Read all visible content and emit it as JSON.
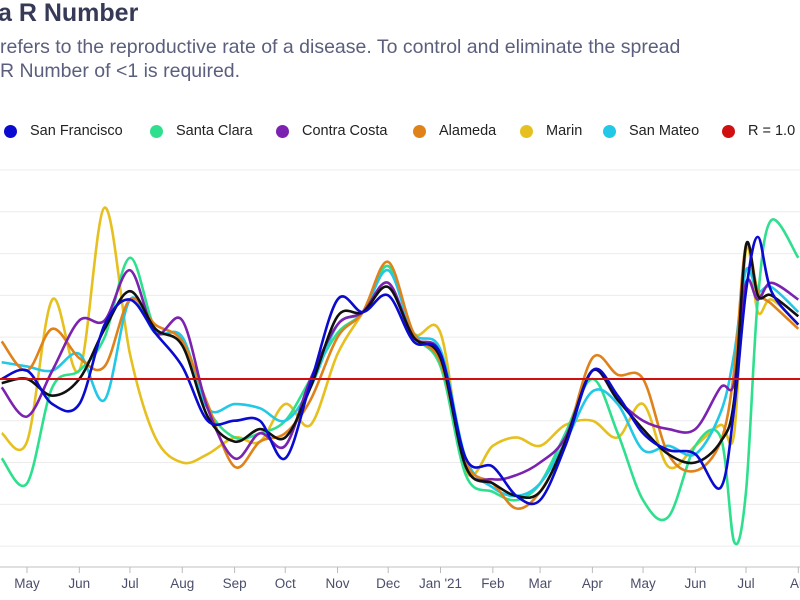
{
  "header": {
    "title": "a R Number",
    "subtitle_line1": "refers to the reproductive rate of a disease. To control and eliminate the spread",
    "subtitle_line2": "R Number of <1 is required."
  },
  "chart_data": {
    "type": "line",
    "title": "a R Number",
    "xlabel": "",
    "ylabel": "",
    "xlim": [
      "2020-04-15",
      "2021-08-02"
    ],
    "ylim": [
      0.55,
      1.5
    ],
    "grid": true,
    "legend_position": "top",
    "x_tick_labels": [
      "May",
      "Jun",
      "Jul",
      "Aug",
      "Sep",
      "Oct",
      "Nov",
      "Dec",
      "Jan '21",
      "Feb",
      "Mar",
      "Apr",
      "May",
      "Jun",
      "Jul",
      "Au"
    ],
    "x_tick_dates": [
      "2020-05-01",
      "2020-06-01",
      "2020-07-01",
      "2020-08-01",
      "2020-09-01",
      "2020-10-01",
      "2020-11-01",
      "2020-12-01",
      "2021-01-01",
      "2021-02-01",
      "2021-03-01",
      "2021-04-01",
      "2021-05-01",
      "2021-06-01",
      "2021-07-01",
      "2021-08-01"
    ],
    "x": [
      "2020-04-16",
      "2020-05-01",
      "2020-05-16",
      "2020-06-01",
      "2020-06-16",
      "2020-07-01",
      "2020-07-16",
      "2020-08-01",
      "2020-08-16",
      "2020-09-01",
      "2020-09-16",
      "2020-10-01",
      "2020-10-16",
      "2020-11-01",
      "2020-11-16",
      "2020-12-01",
      "2020-12-16",
      "2021-01-01",
      "2021-01-16",
      "2021-02-01",
      "2021-02-15",
      "2021-03-01",
      "2021-03-16",
      "2021-04-01",
      "2021-04-16",
      "2021-05-01",
      "2021-05-16",
      "2021-06-01",
      "2021-06-16",
      "2021-06-24",
      "2021-07-01",
      "2021-07-08",
      "2021-07-16",
      "2021-08-01"
    ],
    "series": [
      {
        "name": "Marin",
        "color": "#e6c01e",
        "values": [
          0.87,
          0.85,
          1.19,
          1.02,
          1.41,
          1.06,
          0.86,
          0.8,
          0.82,
          0.86,
          0.85,
          0.94,
          0.89,
          1.06,
          1.16,
          1.27,
          1.11,
          1.11,
          0.78,
          0.84,
          0.86,
          0.84,
          0.89,
          0.9,
          0.86,
          0.94,
          0.79,
          0.84,
          0.89,
          0.87,
          1.31,
          1.16,
          1.19,
          1.13
        ]
      },
      {
        "name": "Santa Clara",
        "color": "#2ee08e",
        "values": [
          0.81,
          0.75,
          0.98,
          1.02,
          1.1,
          1.29,
          1.12,
          1.1,
          0.93,
          0.86,
          0.87,
          0.9,
          1.0,
          1.11,
          1.16,
          1.27,
          1.11,
          1.03,
          0.77,
          0.73,
          0.71,
          0.75,
          0.87,
          1.0,
          0.87,
          0.71,
          0.67,
          0.84,
          0.86,
          0.61,
          0.73,
          1.19,
          1.38,
          1.29
        ]
      },
      {
        "name": "San Mateo",
        "color": "#22c8e6",
        "values": [
          1.04,
          1.03,
          1.02,
          1.06,
          0.95,
          1.19,
          1.11,
          1.1,
          0.93,
          0.94,
          0.93,
          0.9,
          0.98,
          1.13,
          1.16,
          1.26,
          1.11,
          1.07,
          0.81,
          0.74,
          0.72,
          0.75,
          0.85,
          0.97,
          0.94,
          0.83,
          0.84,
          0.82,
          0.92,
          1.06,
          1.26,
          1.21,
          1.22,
          1.16
        ]
      },
      {
        "name": "Alameda",
        "color": "#e0821a",
        "values": [
          1.09,
          1.02,
          1.12,
          1.05,
          1.03,
          1.19,
          1.13,
          1.09,
          0.94,
          0.79,
          0.85,
          0.87,
          0.95,
          1.1,
          1.16,
          1.28,
          1.11,
          1.04,
          0.8,
          0.75,
          0.69,
          0.73,
          0.85,
          1.05,
          1.01,
          1.0,
          0.82,
          0.78,
          0.85,
          1.02,
          1.32,
          1.21,
          1.18,
          1.12
        ]
      },
      {
        "name": "Contra Costa",
        "color": "#7b22b0",
        "values": [
          0.98,
          0.91,
          1.02,
          1.14,
          1.14,
          1.26,
          1.11,
          1.14,
          0.93,
          0.81,
          0.87,
          0.84,
          1.0,
          1.13,
          1.16,
          1.23,
          1.1,
          1.06,
          0.79,
          0.76,
          0.77,
          0.8,
          0.86,
          1.02,
          0.95,
          0.9,
          0.88,
          0.88,
          0.98,
          0.99,
          1.23,
          1.19,
          1.23,
          1.19
        ]
      },
      {
        "color": "#111111",
        "values": [
          0.99,
          1.0,
          0.96,
          1.0,
          1.12,
          1.21,
          1.12,
          1.08,
          0.91,
          0.85,
          0.88,
          0.86,
          0.98,
          1.15,
          1.16,
          1.22,
          1.1,
          1.05,
          0.79,
          0.75,
          0.72,
          0.73,
          0.85,
          1.02,
          0.95,
          0.88,
          0.82,
          0.8,
          0.85,
          0.95,
          1.32,
          1.2,
          1.2,
          1.15
        ]
      },
      {
        "name": "San Francisco",
        "color": "#0a0ad0",
        "values": [
          1.0,
          1.02,
          0.94,
          0.94,
          1.13,
          1.19,
          1.11,
          1.03,
          0.9,
          0.9,
          0.9,
          0.81,
          0.99,
          1.19,
          1.16,
          1.2,
          1.09,
          1.06,
          0.81,
          0.79,
          0.72,
          0.71,
          0.84,
          1.02,
          0.96,
          0.87,
          0.83,
          0.82,
          0.74,
          0.93,
          1.21,
          1.34,
          1.21,
          1.13
        ]
      }
    ],
    "reference_line": {
      "name": "R = 1.0",
      "value": 1.0,
      "color": "#d01010"
    },
    "legend": [
      {
        "label": "San Francisco",
        "color": "#0a0ad0"
      },
      {
        "label": "Santa Clara",
        "color": "#2ee08e"
      },
      {
        "label": "Contra Costa",
        "color": "#7b22b0"
      },
      {
        "label": "Alameda",
        "color": "#e0821a"
      },
      {
        "label": "Marin",
        "color": "#e6c01e"
      },
      {
        "label": "San Mateo",
        "color": "#22c8e6"
      },
      {
        "label": "R = 1.0",
        "color": "#d01010"
      }
    ]
  }
}
